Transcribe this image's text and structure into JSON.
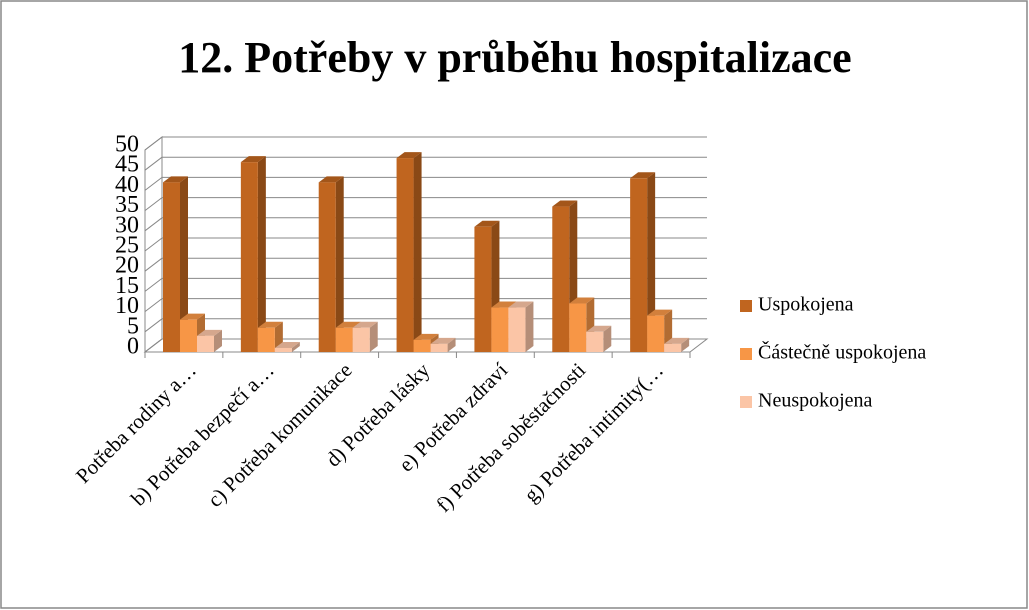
{
  "chart_data": {
    "type": "bar3d",
    "title": "12. Potřeby v průběhu hospitalizace",
    "categories": [
      "Potřeba rodiny a…",
      "b) Potřeba bezpečí a…",
      "c) Potřeba komunikace",
      "d) Potřeba lásky",
      "e) Potřeba zdraví",
      "f) Potřeba soběstačnosti",
      "g) Potřeba intimity(…"
    ],
    "series": [
      {
        "name": "Uspokojena",
        "color": "#c0651f",
        "values": [
          42,
          47,
          42,
          48,
          31,
          36,
          43
        ]
      },
      {
        "name": "Částečně uspokojena",
        "color": "#f79646",
        "values": [
          8,
          6,
          6,
          3,
          11,
          12,
          9
        ]
      },
      {
        "name": "Neuspokojena",
        "color": "#fbc5a6",
        "values": [
          4,
          1,
          6,
          2,
          11,
          5,
          2
        ]
      }
    ],
    "ylim": [
      0,
      50
    ],
    "yticks": [
      0,
      5,
      10,
      15,
      20,
      25,
      30,
      35,
      40,
      45,
      50
    ],
    "grid": true,
    "legend": "right"
  }
}
